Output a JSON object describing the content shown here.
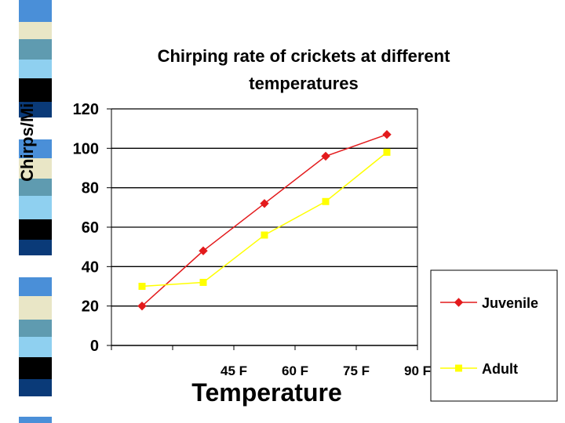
{
  "chart_data": {
    "type": "line",
    "title_lines": [
      "Chirping rate of crickets at different",
      "temperatures"
    ],
    "xlabel": "Temperature",
    "ylabel": "Chirps/Min",
    "categories": [
      "",
      "45 F",
      "60 F",
      "75 F",
      "90 F"
    ],
    "ylim": [
      0,
      120
    ],
    "yticks": [
      0,
      20,
      40,
      60,
      80,
      100,
      120
    ],
    "grid": true,
    "legend_position": "right",
    "series": [
      {
        "name": "Juvenile",
        "color": "#e31a1c",
        "marker": "diamond",
        "values": [
          20,
          48,
          72,
          96,
          107
        ]
      },
      {
        "name": "Adult",
        "color": "#ffff00",
        "marker": "square",
        "values": [
          30,
          32,
          56,
          73,
          98
        ]
      }
    ]
  },
  "decor": {
    "stripe_colors": [
      "#4a8fd8",
      "#0a3a78",
      "#8fd0f0",
      "#e9e6c6",
      "#ffffff",
      "#000000",
      "#5f9bb0"
    ]
  }
}
